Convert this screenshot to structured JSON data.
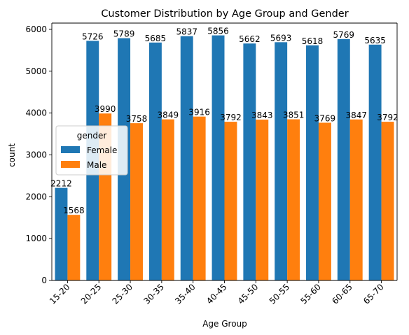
{
  "chart_data": {
    "type": "bar",
    "title": "Customer Distribution by Age Group and Gender",
    "xlabel": "Age Group",
    "ylabel": "count",
    "categories": [
      "15-20",
      "20-25",
      "25-30",
      "30-35",
      "35-40",
      "40-45",
      "45-50",
      "50-55",
      "55-60",
      "60-65",
      "65-70"
    ],
    "series": [
      {
        "name": "Female",
        "color": "#1f77b4",
        "values": [
          2212,
          5726,
          5789,
          5685,
          5837,
          5856,
          5662,
          5693,
          5618,
          5769,
          5635
        ]
      },
      {
        "name": "Male",
        "color": "#ff7f0e",
        "values": [
          1568,
          3990,
          3758,
          3849,
          3916,
          3792,
          3843,
          3851,
          3769,
          3847,
          3792
        ]
      }
    ],
    "ylim": [
      0,
      6150
    ],
    "yticks": [
      0,
      1000,
      2000,
      3000,
      4000,
      5000,
      6000
    ],
    "legend": {
      "title": "gender",
      "placement": "center-left"
    },
    "grid": false
  }
}
